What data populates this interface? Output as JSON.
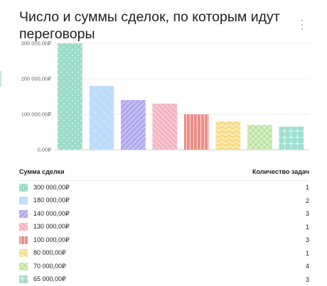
{
  "widget": {
    "title": "Число и суммы сделок, по которым идут переговоры",
    "menu_icon": "more-vertical-icon"
  },
  "legend": {
    "col_amount": "Сумма сделки",
    "col_count": "Количество задач"
  },
  "chart_data": {
    "type": "bar",
    "title": "Число и суммы сделок, по которым идут переговоры",
    "xlabel": "",
    "ylabel": "",
    "ylim": [
      0,
      300000
    ],
    "y_ticks": [
      0,
      100000,
      200000,
      300000
    ],
    "y_tick_labels": [
      "0,00₽",
      "100 000,00₽",
      "200 000,00₽",
      "300 000,00₽"
    ],
    "grid": true,
    "categories": [
      "300 000,00₽",
      "180 000,00₽",
      "140 000,00₽",
      "130 000,00₽",
      "100 000,00₽",
      "80 000,00₽",
      "70 000,00₽",
      "65 000,00₽"
    ],
    "values": [
      300000,
      180000,
      140000,
      130000,
      100000,
      80000,
      70000,
      65000
    ],
    "task_counts": [
      "1",
      "2",
      "3",
      "1",
      "3",
      "1",
      "4",
      "3"
    ],
    "colors": [
      "#9bdcc9",
      "#bcdcfb",
      "#b1a8ec",
      "#f4b3c2",
      "#ee8a84",
      "#f8dc86",
      "#b8e29c",
      "#9fdfd2"
    ],
    "patterns": [
      "dots",
      "diag-right-sparse",
      "diag-left",
      "diag-right",
      "vertical",
      "waves",
      "cross",
      "cross-dots"
    ]
  }
}
